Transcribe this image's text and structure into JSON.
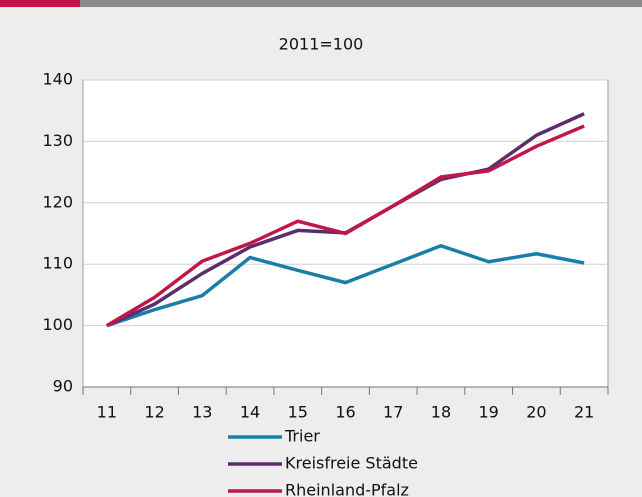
{
  "chart_data": {
    "type": "line",
    "title": "2011=100",
    "categories": [
      "11",
      "12",
      "13",
      "14",
      "15",
      "16",
      "17",
      "18",
      "19",
      "20",
      "21"
    ],
    "series": [
      {
        "name": "Trier",
        "color": "#1a7fa8",
        "values": [
          100,
          102.6,
          104.9,
          111.1,
          109,
          107,
          110,
          113,
          110.4,
          111.7,
          110.2
        ]
      },
      {
        "name": "Kreisfreie Städte",
        "color": "#5c2d6b",
        "values": [
          100,
          103.5,
          108.5,
          112.8,
          115.5,
          115.1,
          119.5,
          123.8,
          125.5,
          131,
          134.5
        ]
      },
      {
        "name": "Rheinland-Pfalz",
        "color": "#c0174b",
        "values": [
          100,
          104.6,
          110.5,
          113.4,
          117,
          115,
          119.5,
          124.2,
          125.2,
          129.2,
          132.5
        ]
      }
    ],
    "ylim": [
      90,
      140
    ],
    "yticks": [
      90,
      100,
      110,
      120,
      130,
      140
    ],
    "grid": true
  }
}
